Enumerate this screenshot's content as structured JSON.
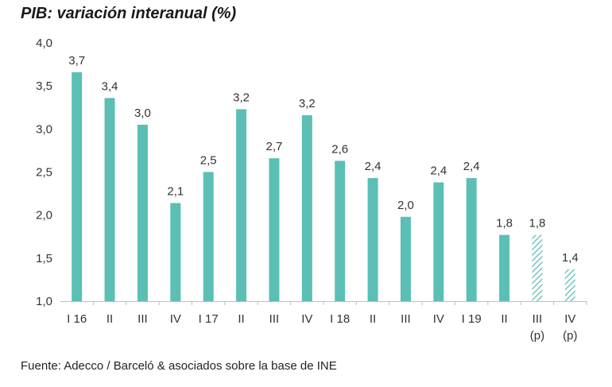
{
  "chart_data": {
    "type": "bar",
    "title": "PIB: variación interanual (%)",
    "source": "Fuente: Adecco / Barceló & asociados sobre la base de INE",
    "xlabel": "",
    "ylabel": "",
    "ylim": [
      1.0,
      4.0
    ],
    "yticks": [
      "1,0",
      "1,5",
      "2,0",
      "2,5",
      "3,0",
      "3,5",
      "4,0"
    ],
    "ytick_values": [
      1.0,
      1.5,
      2.0,
      2.5,
      3.0,
      3.5,
      4.0
    ],
    "grid": false,
    "categories": [
      "I 16",
      "II",
      "III",
      "IV",
      "I 17",
      "II",
      "III",
      "IV",
      "I 18",
      "II",
      "III",
      "IV",
      "I 19",
      "II",
      "III",
      "IV"
    ],
    "category_sublabels": [
      "",
      "",
      "",
      "",
      "",
      "",
      "",
      "",
      "",
      "",
      "",
      "",
      "",
      "",
      "(p)",
      "(p)"
    ],
    "values": [
      3.7,
      3.4,
      3.0,
      2.1,
      2.5,
      3.2,
      2.7,
      3.2,
      2.6,
      2.4,
      2.0,
      2.4,
      2.4,
      1.8,
      1.8,
      1.4
    ],
    "drawn_values": [
      3.66,
      3.36,
      3.05,
      2.14,
      2.5,
      3.23,
      2.66,
      3.16,
      2.63,
      2.43,
      1.98,
      2.38,
      2.43,
      1.77,
      1.77,
      1.37
    ],
    "data_labels": [
      "3,7",
      "3,4",
      "3,0",
      "2,1",
      "2,5",
      "3,2",
      "2,7",
      "3,2",
      "2,6",
      "2,4",
      "2,0",
      "2,4",
      "2,4",
      "1,8",
      "1,8",
      "1,4"
    ],
    "projected": [
      false,
      false,
      false,
      false,
      false,
      false,
      false,
      false,
      false,
      false,
      false,
      false,
      false,
      false,
      true,
      true
    ],
    "colors": {
      "bar": "#5bbfb5",
      "axis": "#bfbfbf",
      "text": "#333333"
    }
  }
}
